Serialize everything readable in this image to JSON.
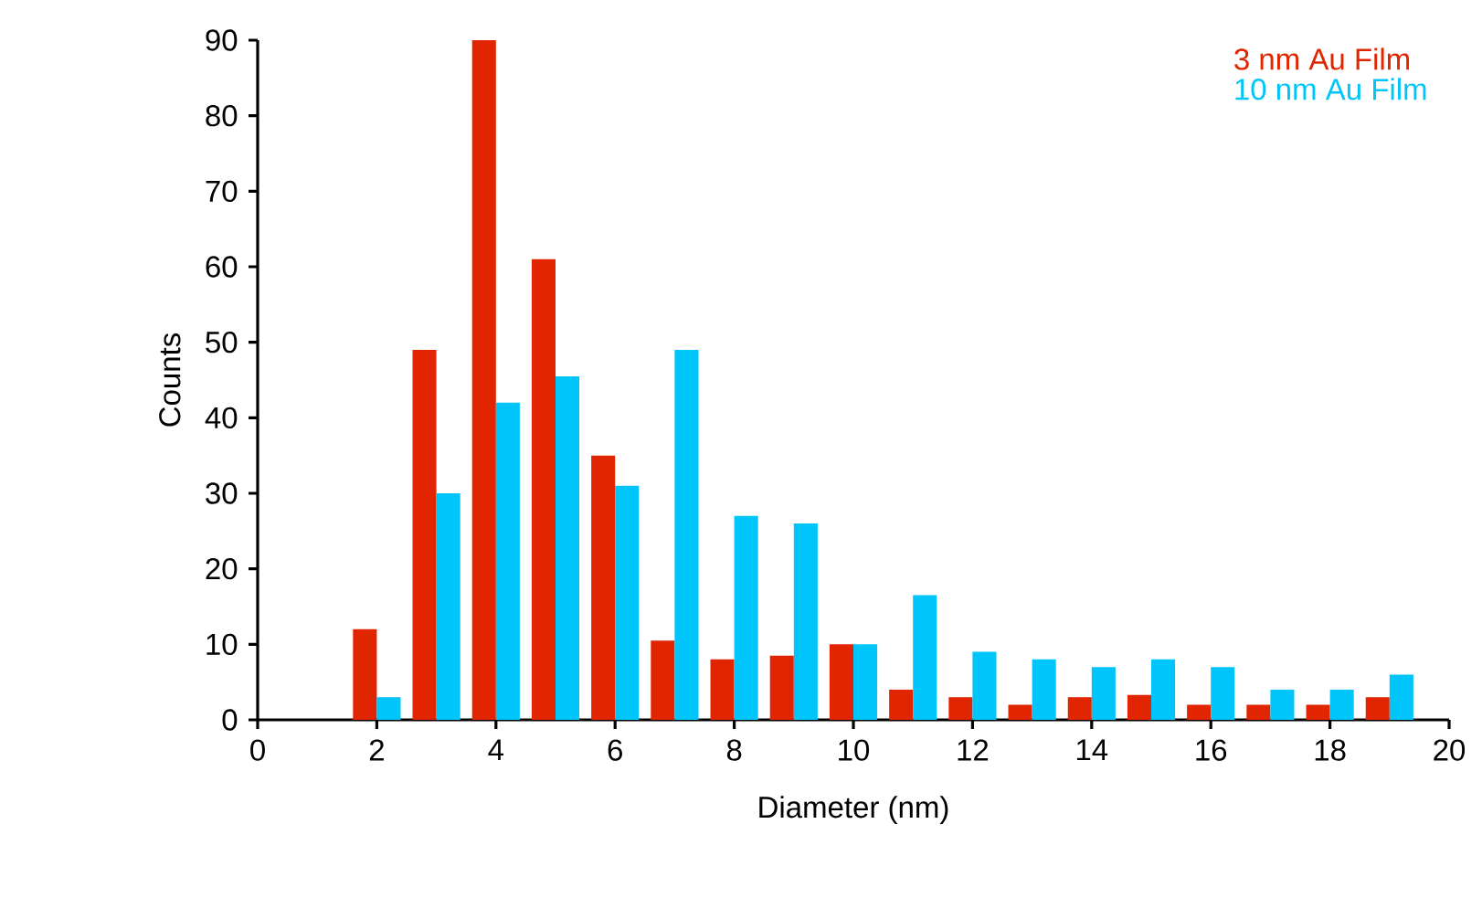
{
  "chart_data": {
    "type": "bar",
    "xlabel": "Diameter (nm)",
    "ylabel": "Counts",
    "x": [
      2,
      3,
      4,
      5,
      6,
      7,
      8,
      9,
      10,
      11,
      12,
      13,
      14,
      15,
      16,
      17,
      18,
      19
    ],
    "series": [
      {
        "name": "3 nm Au Film",
        "color": "#e12500",
        "values": [
          12,
          49,
          90,
          61,
          35,
          10.5,
          8,
          8.5,
          10,
          4,
          3,
          2,
          3,
          3.3,
          2,
          2,
          2,
          3
        ]
      },
      {
        "name": "10 nm Au Film",
        "color": "#00c5fa",
        "values": [
          3,
          30,
          42,
          45.5,
          31,
          49,
          27,
          26,
          10,
          16.5,
          9,
          8,
          7,
          8,
          7,
          4,
          4,
          6
        ]
      }
    ],
    "xlim": [
      0,
      20
    ],
    "xticks": [
      0,
      2,
      4,
      6,
      8,
      10,
      12,
      14,
      16,
      18,
      20
    ],
    "ylim": [
      0,
      90
    ],
    "yticks": [
      0,
      10,
      20,
      30,
      40,
      50,
      60,
      70,
      80,
      90
    ],
    "grid": false,
    "legend": "top right"
  }
}
